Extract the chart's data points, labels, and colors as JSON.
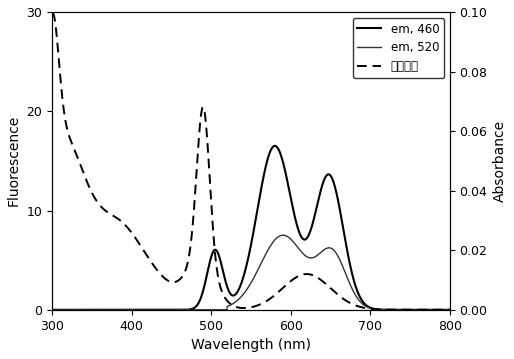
{
  "title": "",
  "xlabel": "Wavelength (nm)",
  "ylabel_left": "Fluorescence",
  "ylabel_right": "Absorbance",
  "xlim": [
    300,
    800
  ],
  "ylim_left": [
    0,
    30
  ],
  "ylim_right": [
    0,
    0.1
  ],
  "xticks": [
    300,
    400,
    500,
    600,
    700,
    800
  ],
  "yticks_left": [
    0,
    10,
    20,
    30
  ],
  "yticks_right": [
    0.0,
    0.02,
    0.04,
    0.06,
    0.08,
    0.1
  ],
  "legend": [
    "em, 460",
    "em, 520",
    "可见吸收"
  ],
  "background_color": "#ffffff"
}
